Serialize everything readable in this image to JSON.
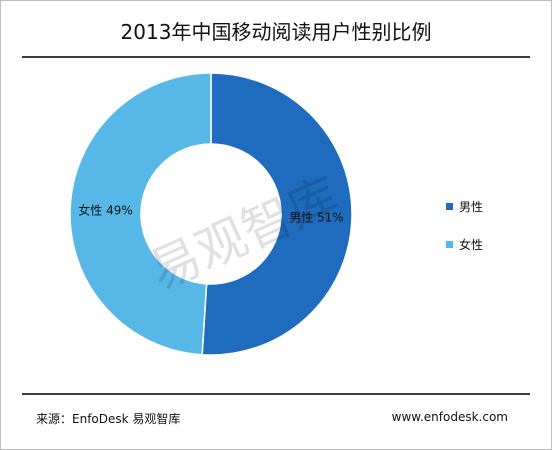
{
  "title": "2013年中国移动阅读用户性别比例",
  "watermark": "易观智库",
  "footer": {
    "source": "来源：EnfoDesk 易观智库",
    "url": "www.enfodesk.com"
  },
  "colors": {
    "male": "#1f6bbd",
    "female": "#57b8e8"
  },
  "chart_data": {
    "type": "pie",
    "donut": true,
    "slices": [
      {
        "name": "男性",
        "value": 51,
        "label": "男性  51%",
        "color": "#1f6bbd"
      },
      {
        "name": "女性",
        "value": 49,
        "label": "女性  49%",
        "color": "#57b8e8"
      }
    ],
    "legend_position": "right"
  },
  "legend": [
    {
      "label": "男性",
      "color": "#1f6bbd"
    },
    {
      "label": "女性",
      "color": "#57b8e8"
    }
  ]
}
